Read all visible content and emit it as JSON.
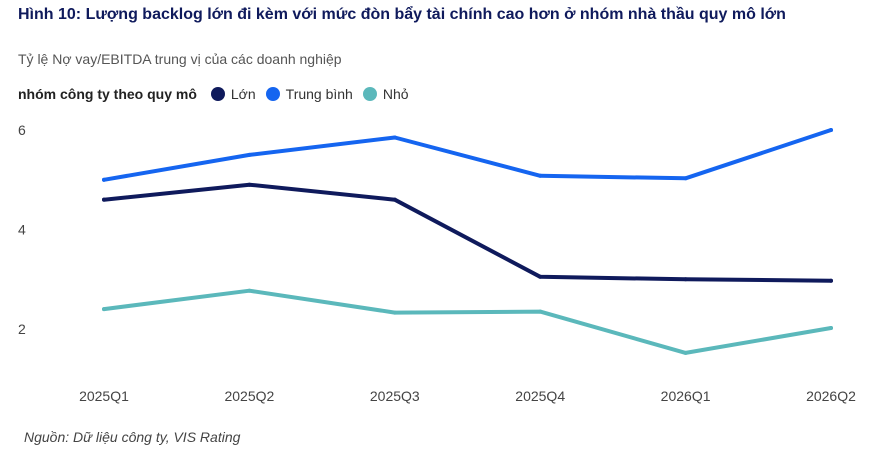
{
  "title": "Hình 10: Lượng backlog lớn đi kèm với mức đòn bẩy tài chính cao hơn ở nhóm nhà thầu quy mô lớn",
  "subtitle": "Tỷ lệ Nợ vay/EBITDA trung vị của các doanh nghiệp",
  "legend": {
    "title": "nhóm công ty theo quy mô",
    "items": [
      {
        "label": "Lớn",
        "color": "#0f1a5c"
      },
      {
        "label": "Trung bình",
        "color": "#1565f0"
      },
      {
        "label": "Nhỏ",
        "color": "#5bb8bb"
      }
    ]
  },
  "source": "Nguồn: Dữ liệu công ty, VIS Rating",
  "chart_data": {
    "type": "line",
    "categories": [
      "2025Q1",
      "2025Q2",
      "2025Q3",
      "2025Q4",
      "2026Q1",
      "2026Q2"
    ],
    "y_ticks": [
      2,
      4,
      6
    ],
    "ylim": [
      1,
      6.4
    ],
    "grid": false,
    "legend_position": "top-left",
    "series": [
      {
        "name": "Lớn",
        "color": "#0f1a5c",
        "values": [
          4.6,
          4.9,
          4.6,
          3.05,
          3.0,
          2.97
        ]
      },
      {
        "name": "Trung bình",
        "color": "#1565f0",
        "values": [
          5.0,
          5.5,
          5.85,
          5.08,
          5.03,
          6.0
        ]
      },
      {
        "name": "Nhỏ",
        "color": "#5bb8bb",
        "values": [
          2.4,
          2.77,
          2.33,
          2.35,
          1.52,
          2.02
        ]
      }
    ]
  }
}
